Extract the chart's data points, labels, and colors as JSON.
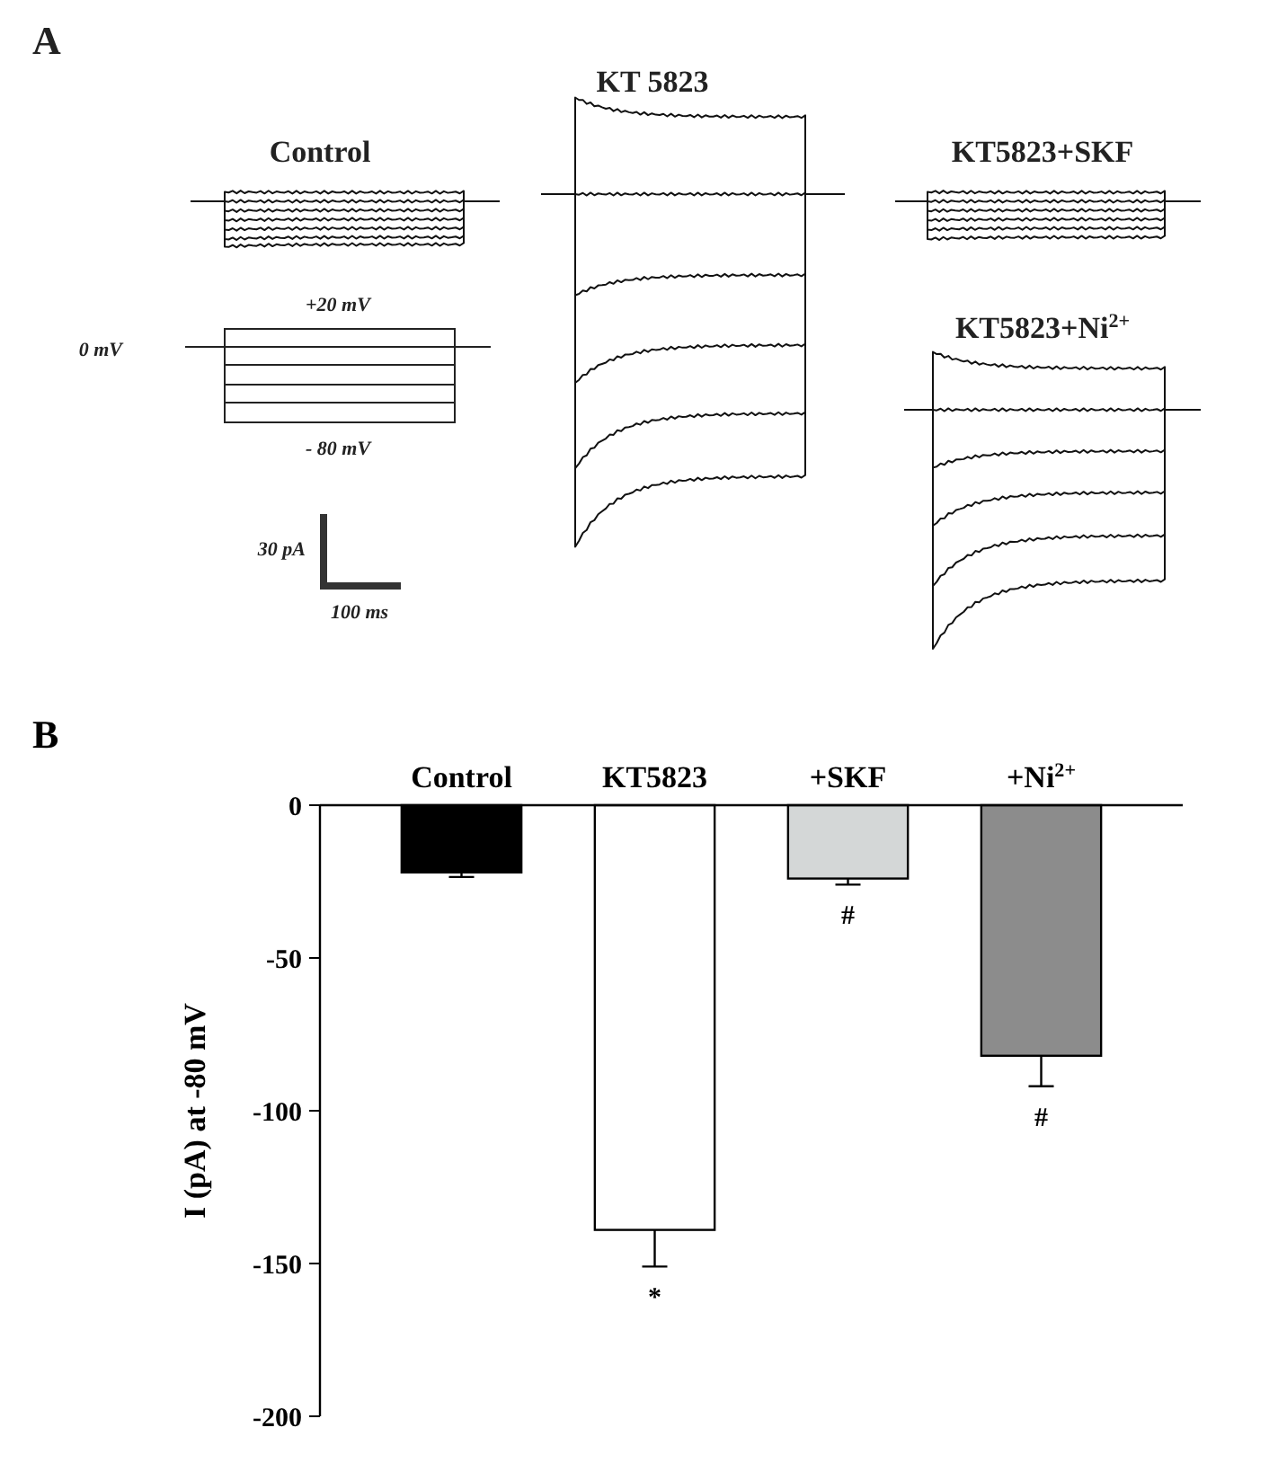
{
  "chart_data": [
    {
      "type": "other",
      "annotations": [
        "A",
        "Control",
        "KT 5823",
        "KT5823+SKF",
        "KT5823+Ni$^{2+}$",
        "+20 mV",
        "0 mV",
        "- 80 mV",
        "30 pA",
        "100 ms"
      ]
    },
    {
      "type": "bar",
      "categories": [
        "Control",
        "KT5823",
        "+SKF",
        "+Ni$^{2+}$"
      ],
      "values": [
        -22,
        -139,
        -24,
        -82
      ],
      "errors": [
        1.5,
        12,
        2,
        10
      ],
      "colors": [
        "#000000",
        "#ffffff",
        "#d4d7d7",
        "#8c8c8c"
      ],
      "ylabel": "I (pA) at -80 mV",
      "ylim": [
        -200,
        0
      ],
      "yticks": [
        -200,
        -150,
        -100,
        -50,
        0
      ],
      "grid": false,
      "annotations": [
        "B",
        "*",
        "#",
        "#"
      ]
    }
  ]
}
